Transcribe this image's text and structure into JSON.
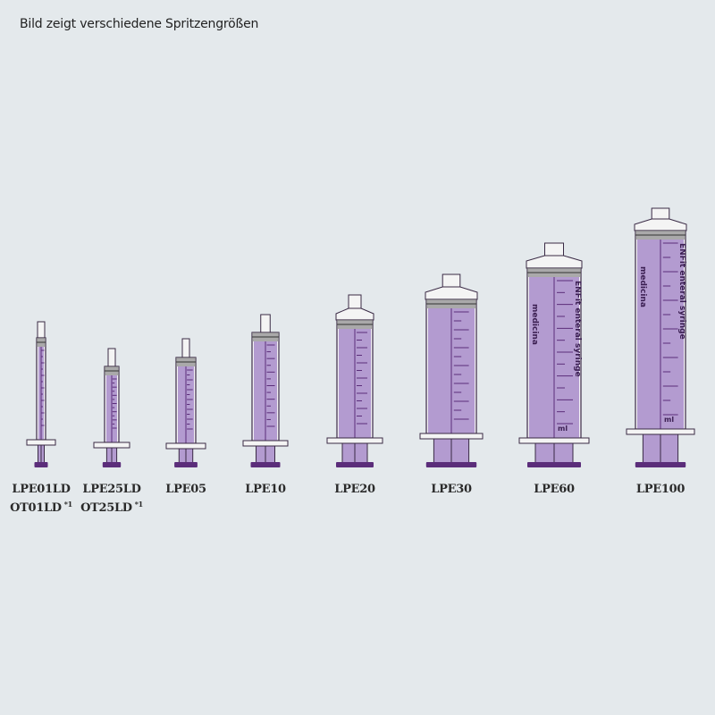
{
  "title": "Bild zeigt verschiedene Spritzengrößen",
  "colors": {
    "background": "#e4e9ec",
    "fill": "#b39bd0",
    "plunger": "#5b2d7a",
    "outline": "#3a2a45",
    "cap": "#f4f4f4"
  },
  "syringes": [
    {
      "name": "LPE01LD",
      "alt": "OT01LD",
      "note": "*1"
    },
    {
      "name": "LPE25LD",
      "alt": "OT25LD",
      "note": "*1"
    },
    {
      "name": "LPE05"
    },
    {
      "name": "LPE10"
    },
    {
      "name": "LPE20"
    },
    {
      "name": "LPE30"
    },
    {
      "name": "LPE60"
    },
    {
      "name": "LPE100"
    }
  ],
  "barrel_lettering": {
    "brand": "medicina",
    "product": "ENFit enteral syringe",
    "unit": "ml"
  }
}
